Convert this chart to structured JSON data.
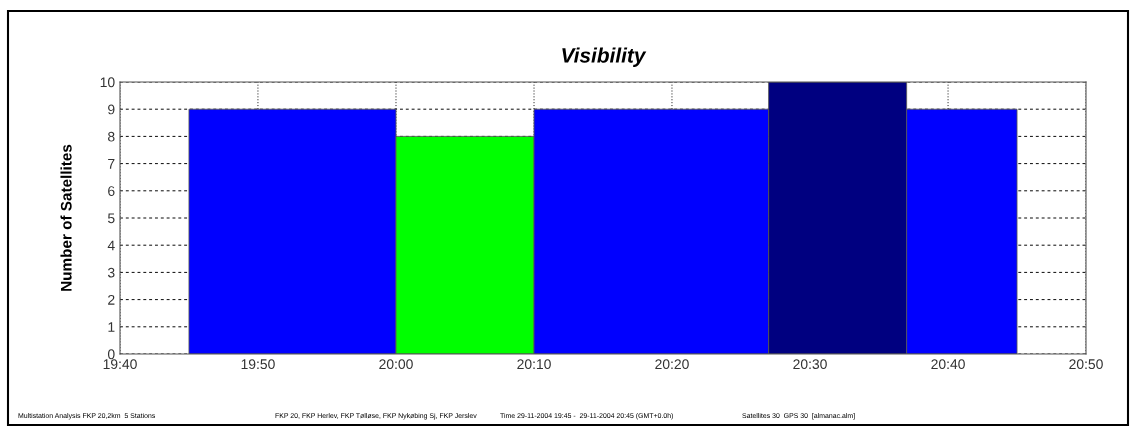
{
  "chart_data": {
    "type": "histogram",
    "title": "Visibility",
    "ylabel": "Number of Satellites",
    "bins": [
      19.75,
      20.0,
      20.1667,
      20.45,
      20.6167,
      20.75
    ],
    "values": [
      9,
      8,
      9,
      10,
      9
    ],
    "colors": [
      "#0000ff",
      "#00ff00",
      "#0000ff",
      "#000080",
      "#0000ff"
    ],
    "xlim": [
      19.6667,
      20.8333
    ],
    "xticks": [
      {
        "value": 19.6667,
        "label": "19:40"
      },
      {
        "value": 19.8333,
        "label": "19:50"
      },
      {
        "value": 20.0,
        "label": "20:00"
      },
      {
        "value": 20.1667,
        "label": "20:10"
      },
      {
        "value": 20.3333,
        "label": "20:20"
      },
      {
        "value": 20.5,
        "label": "20:30"
      },
      {
        "value": 20.6667,
        "label": "20:40"
      },
      {
        "value": 20.8333,
        "label": "20:50"
      }
    ],
    "ylim": [
      0,
      10
    ],
    "yticks": [
      0,
      1,
      2,
      3,
      4,
      5,
      6,
      7,
      8,
      9,
      10
    ],
    "grid": true,
    "annotations": [
      "Multistation Analysis FKP 20,2km  5 Stations",
      "FKP 20, FKP Herlev, FKP Tølløse, FKP Nykøbing Sj, FKP Jerslev",
      "Time 29-11-2004 19:45 -  29-11-2004 20:45 (GMT+0.0h)",
      "Satellites 30  GPS 30  [almanac.alm]"
    ]
  }
}
